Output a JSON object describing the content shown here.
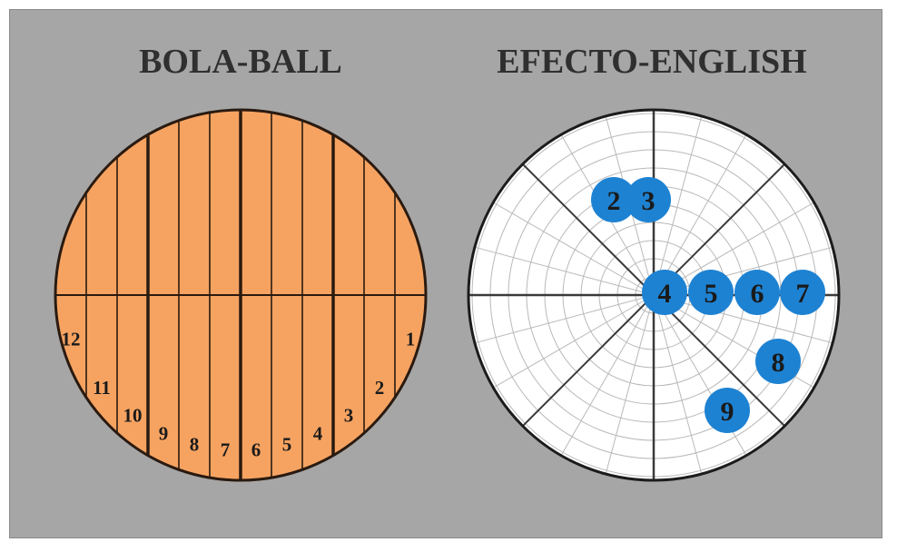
{
  "titles": {
    "ball": "BOLA-BALL",
    "english": "EFECTO-ENGLISH"
  },
  "ball": {
    "fill_color": "#f6a361",
    "stroke_color": "#2a1a10",
    "segment_labels": [
      "12",
      "11",
      "10",
      "9",
      "8",
      "7",
      "6",
      "5",
      "4",
      "3",
      "2",
      "1"
    ]
  },
  "english": {
    "dot_color": "#1e82d2",
    "positions": [
      {
        "label": "2"
      },
      {
        "label": "3"
      },
      {
        "label": "4"
      },
      {
        "label": "5"
      },
      {
        "label": "6"
      },
      {
        "label": "7"
      },
      {
        "label": "8"
      },
      {
        "label": "9"
      }
    ]
  }
}
